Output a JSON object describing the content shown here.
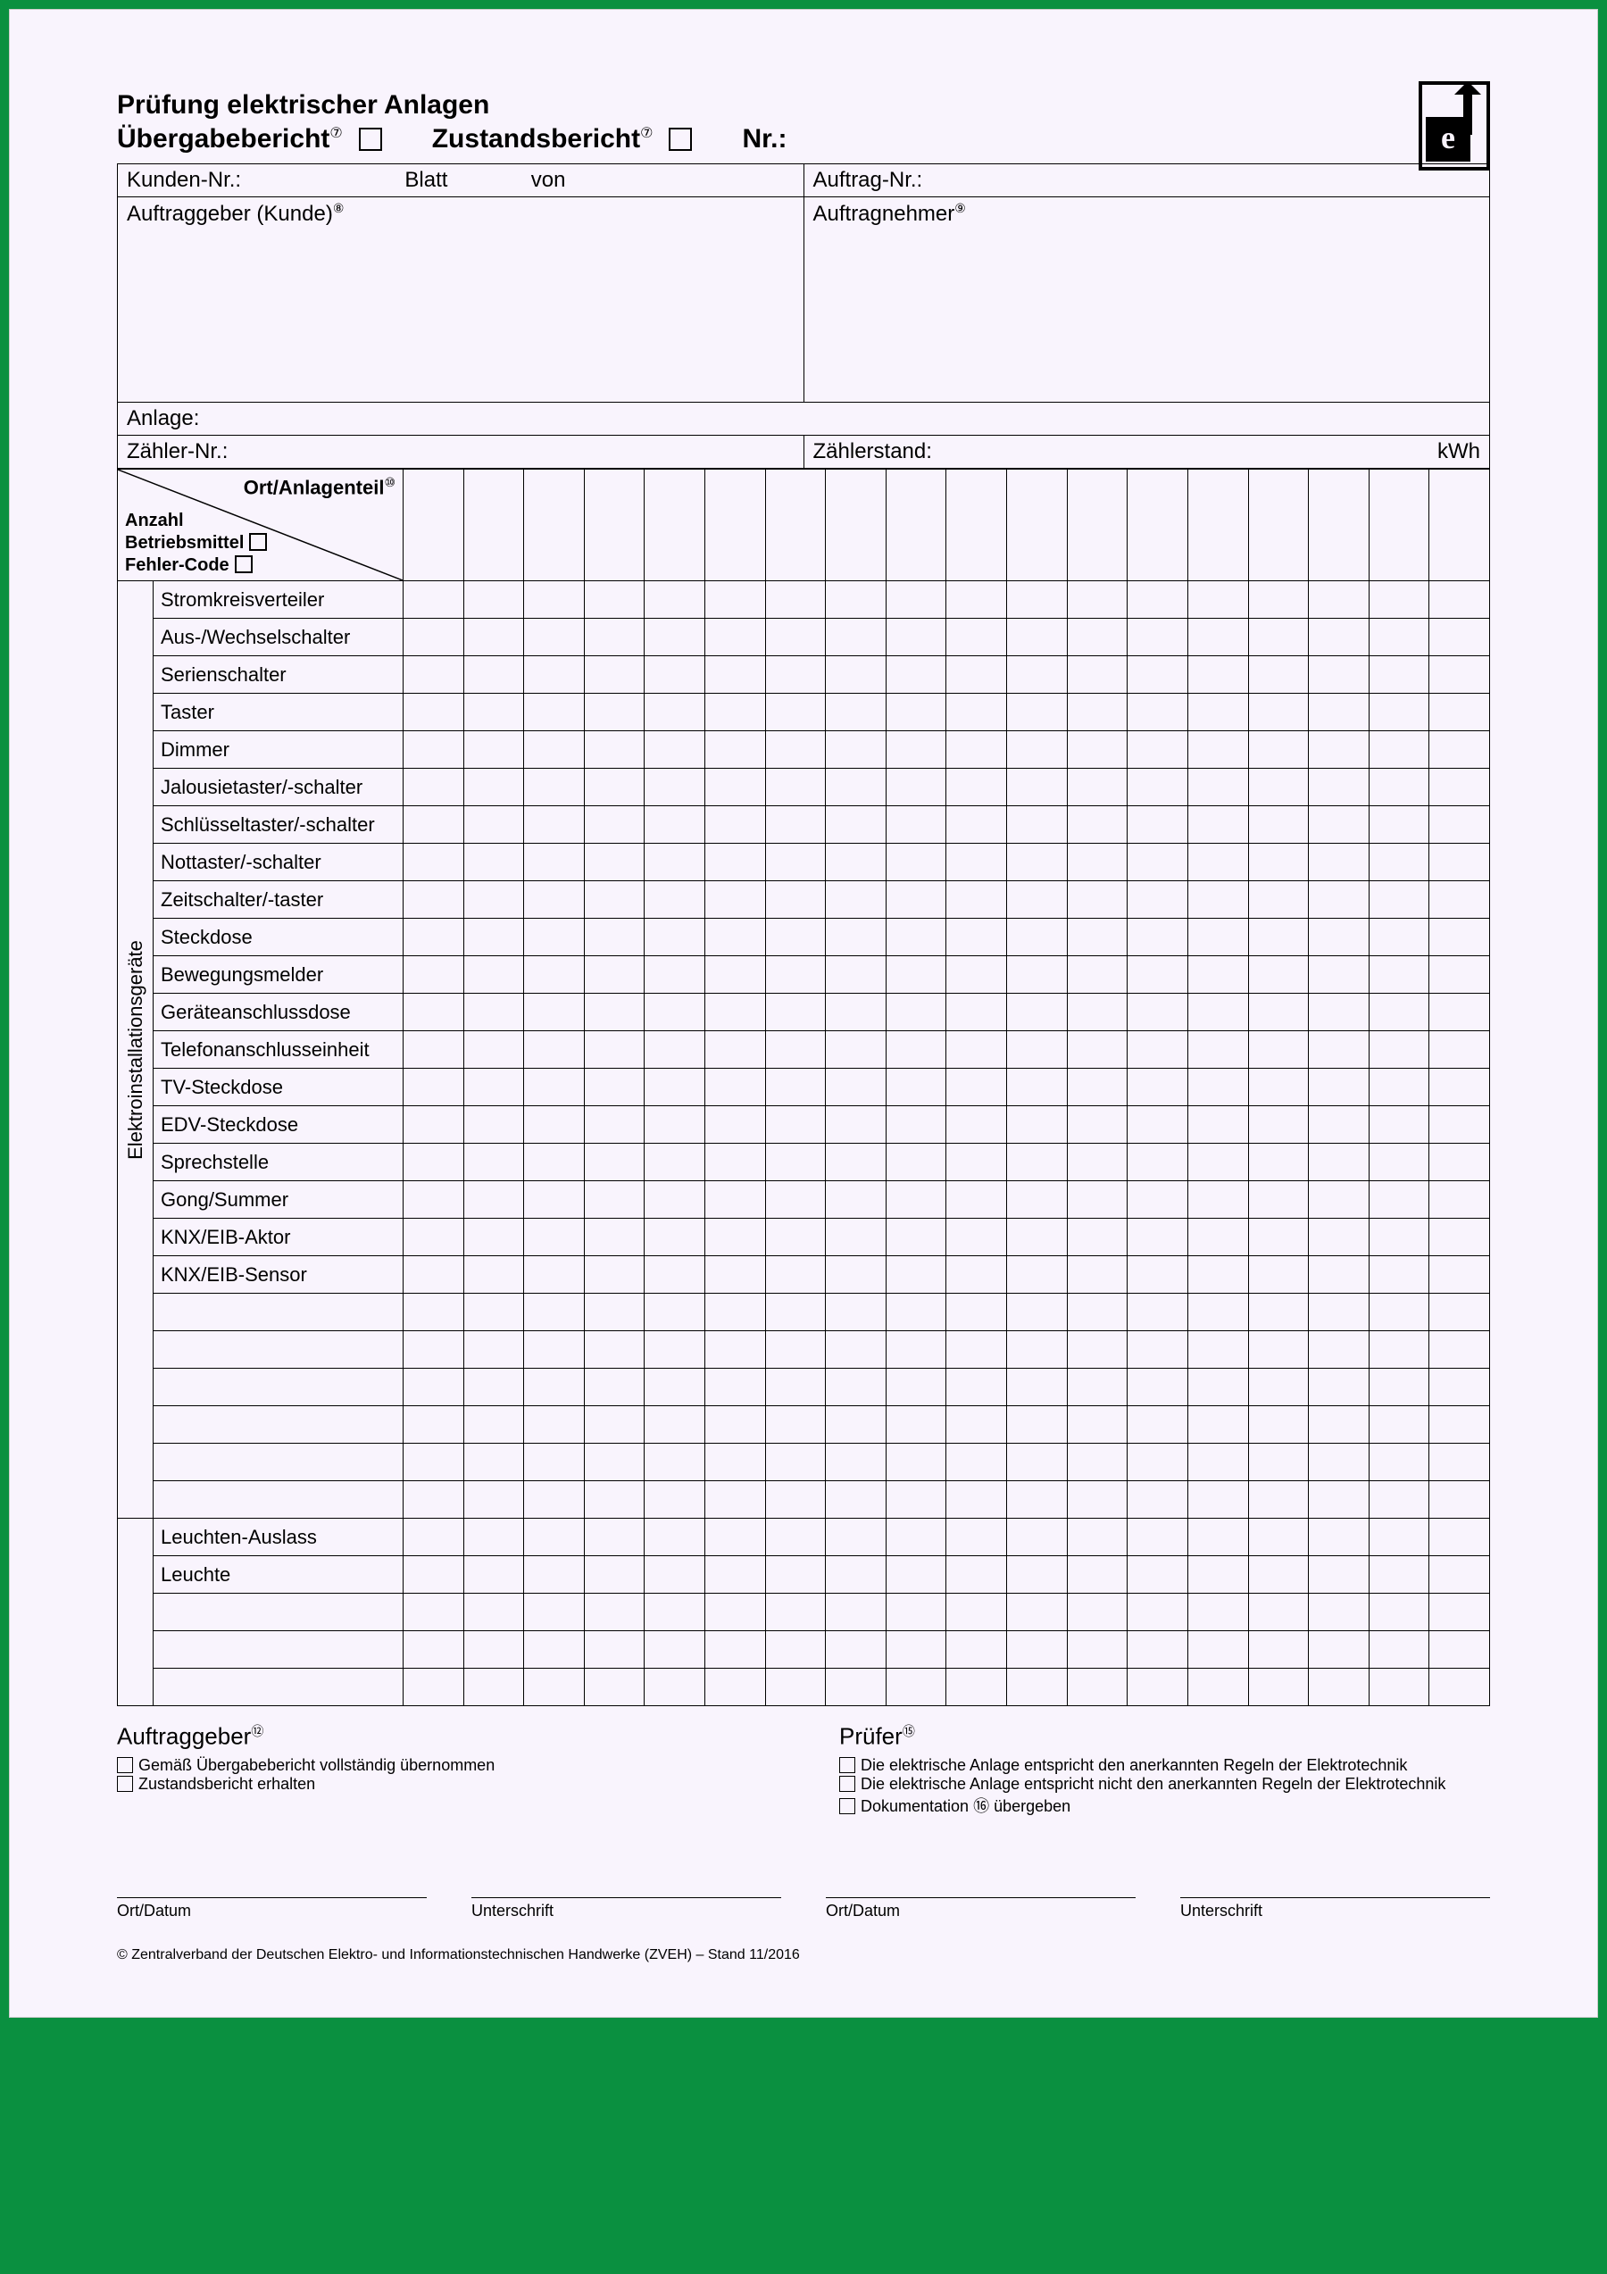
{
  "colors": {
    "page_bg": "#f9f4fd",
    "border": "#000000",
    "outer_bg": "#0a9040"
  },
  "header": {
    "title": "Prüfung elektrischer Anlagen",
    "report_a": "Übergabebericht",
    "report_b": "Zustandsbericht",
    "nr_label": "Nr.:",
    "sup_7": "⑦"
  },
  "info": {
    "kunden_nr": "Kunden-Nr.:",
    "blatt": "Blatt",
    "von": "von",
    "auftrag_nr": "Auftrag-Nr.:",
    "auftraggeber": "Auftraggeber (Kunde)",
    "auftragnehmer": "Auftragnehmer",
    "sup_8": "⑧",
    "sup_9": "⑨",
    "anlage": "Anlage:",
    "zaehler_nr": "Zähler-Nr.:",
    "zaehlerstand": "Zählerstand:",
    "kwh": "kWh"
  },
  "diag": {
    "upper": "Ort/Anlagenteil",
    "sup_10": "⑩",
    "l1": "Anzahl",
    "l2": "Betriebsmittel",
    "l3": "Fehler-Code"
  },
  "side_label": "Elektroinstallationsgeräte",
  "columns_count": 18,
  "rows_group1": [
    "Stromkreisverteiler",
    "Aus-/Wechselschalter",
    "Serienschalter",
    "Taster",
    "Dimmer",
    "Jalousietaster/-schalter",
    "Schlüsseltaster/-schalter",
    "Nottaster/-schalter",
    "Zeitschalter/-taster",
    "Steckdose",
    "Bewegungsmelder",
    "Geräteanschlussdose",
    "Telefonanschlusseinheit",
    "TV-Steckdose",
    "EDV-Steckdose",
    "Sprechstelle",
    "Gong/Summer",
    "KNX/EIB-Aktor",
    "KNX/EIB-Sensor",
    "",
    "",
    "",
    "",
    "",
    ""
  ],
  "rows_group2": [
    "Leuchten-Auslass",
    "Leuchte",
    "",
    "",
    ""
  ],
  "footer": {
    "left_h": "Auftraggeber",
    "left_sup": "⑫",
    "left_items": [
      "Gemäß Übergabebericht vollständig übernommen",
      "Zustandsbericht erhalten"
    ],
    "right_h": "Prüfer",
    "right_sup": "⑮",
    "right_items": [
      "Die elektrische Anlage entspricht den anerkannten Regeln der Elektrotechnik",
      "Die elektrische Anlage entspricht nicht den anerkannten Regeln der Elektrotechnik",
      "Dokumentation ⑯ übergeben"
    ]
  },
  "sig": {
    "a": "Ort/Datum",
    "b": "Unterschrift"
  },
  "copyright": "© Zentralverband der Deutschen Elektro- und Informationstechnischen Handwerke (ZVEH) – Stand 11/2016"
}
